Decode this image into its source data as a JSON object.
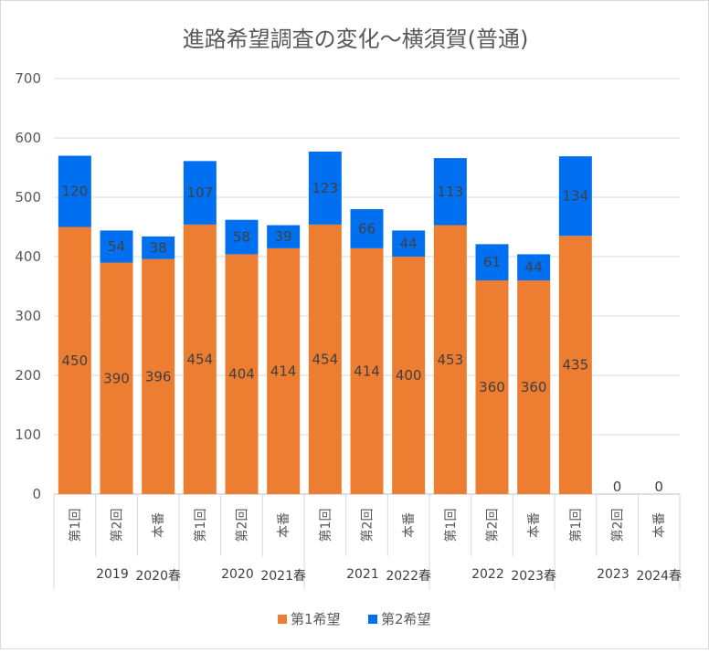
{
  "chart_data": {
    "type": "bar",
    "stacked": true,
    "title": "進路希望調査の変化～横須賀(普通)",
    "ylim": [
      0,
      700
    ],
    "yticks": [
      0,
      100,
      200,
      300,
      400,
      500,
      600,
      700
    ],
    "grid": true,
    "legend_position": "bottom",
    "groups": [
      {
        "label": "2019",
        "sub_label": "2020春"
      },
      {
        "label": "2020",
        "sub_label": "2021春"
      },
      {
        "label": "2021",
        "sub_label": "2022春"
      },
      {
        "label": "2022",
        "sub_label": "2023春"
      },
      {
        "label": "2023",
        "sub_label": "2024春"
      }
    ],
    "categories": [
      "第1回",
      "第2回",
      "本番",
      "第1回",
      "第2回",
      "本番",
      "第1回",
      "第2回",
      "本番",
      "第1回",
      "第2回",
      "本番",
      "第1回",
      "第2回",
      "本番"
    ],
    "series": [
      {
        "name": "第1希望",
        "color": "#ED7D31",
        "values": [
          450,
          390,
          396,
          454,
          404,
          414,
          454,
          414,
          400,
          453,
          360,
          360,
          435,
          0,
          0
        ]
      },
      {
        "name": "第2希望",
        "color": "#0070F0",
        "values": [
          120,
          54,
          38,
          107,
          58,
          39,
          123,
          66,
          44,
          113,
          61,
          44,
          134,
          0,
          0
        ]
      }
    ]
  }
}
